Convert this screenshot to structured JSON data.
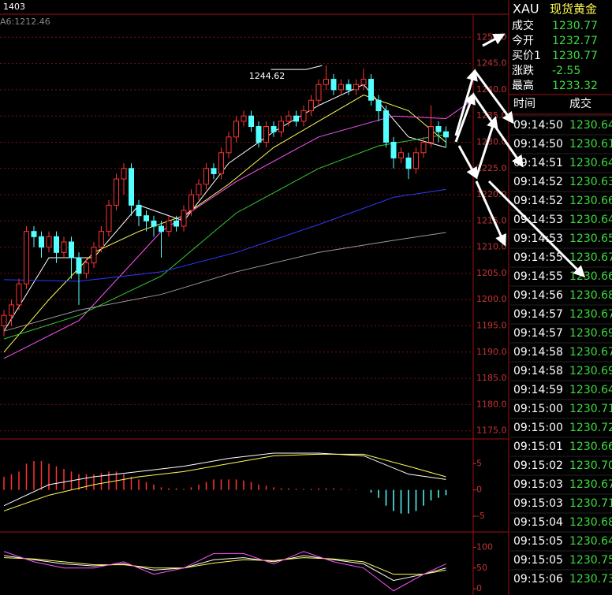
{
  "header": {
    "code": "1403",
    "ma_label": "A6:1212.46"
  },
  "quote": {
    "symbol": "XAU",
    "name": "现货黄金",
    "rows": [
      [
        "成交",
        "1230.77"
      ],
      [
        "今开",
        "1232.77"
      ],
      [
        "买价1",
        "1230.77"
      ],
      [
        "涨跌",
        "-2.55"
      ],
      [
        "最高",
        "1233.32"
      ]
    ]
  },
  "trades": {
    "columns": [
      "时间",
      "成交"
    ],
    "rows": [
      [
        "09:14:50",
        "1230.64"
      ],
      [
        "09:14:50",
        "1230.61"
      ],
      [
        "09:14:51",
        "1230.64"
      ],
      [
        "09:14:52",
        "1230.63"
      ],
      [
        "09:14:52",
        "1230.66"
      ],
      [
        "09:14:53",
        "1230.64"
      ],
      [
        "09:14:53",
        "1230.65"
      ],
      [
        "09:14:55",
        "1230.67"
      ],
      [
        "09:14:55",
        "1230.66"
      ],
      [
        "09:14:56",
        "1230.68"
      ],
      [
        "09:14:57",
        "1230.67"
      ],
      [
        "09:14:57",
        "1230.69"
      ],
      [
        "09:14:58",
        "1230.67"
      ],
      [
        "09:14:58",
        "1230.69"
      ],
      [
        "09:14:59",
        "1230.64"
      ],
      [
        "09:15:00",
        "1230.71"
      ],
      [
        "09:15:00",
        "1230.72"
      ],
      [
        "09:15:01",
        "1230.66"
      ],
      [
        "09:15:02",
        "1230.70"
      ],
      [
        "09:15:03",
        "1230.67"
      ],
      [
        "09:15:03",
        "1230.71"
      ],
      [
        "09:15:04",
        "1230.68"
      ],
      [
        "09:15:05",
        "1230.64"
      ],
      [
        "09:15:05",
        "1230.75"
      ],
      [
        "09:15:06",
        "1230.73"
      ]
    ]
  },
  "chart_data": [
    {
      "type": "candlestick",
      "annotation": "1244.62",
      "grid": true,
      "up_color": "#ff3232",
      "down_color": "#54ffff",
      "ylim": [
        1174.5,
        1251.4
      ],
      "yticks": [
        {
          "value": 1250,
          "label": "1250.0"
        },
        {
          "value": 1245,
          "label": "1245.0"
        },
        {
          "value": 1240,
          "label": "1240.0"
        },
        {
          "value": 1235,
          "label": "1235.0"
        },
        {
          "value": 1230,
          "label": "1230.0"
        },
        {
          "value": 1225,
          "label": "1225.0"
        },
        {
          "value": 1220,
          "label": "1220.0"
        },
        {
          "value": 1215,
          "label": "1215.0"
        },
        {
          "value": 1210,
          "label": "1210.0"
        },
        {
          "value": 1205,
          "label": "1205.0"
        },
        {
          "value": 1200,
          "label": "1200.0"
        },
        {
          "value": 1195,
          "label": "1195.0"
        },
        {
          "value": 1190,
          "label": "1190.0"
        },
        {
          "value": 1185,
          "label": "1185.0"
        },
        {
          "value": 1180,
          "label": "1180.0"
        },
        {
          "value": 1175,
          "label": "1175.0"
        }
      ],
      "open": [
        1195,
        1197,
        1199,
        1203,
        1213,
        1212,
        1210,
        1212,
        1209,
        1211,
        1208,
        1205,
        1207,
        1210,
        1213,
        1218,
        1223,
        1225,
        1218,
        1216,
        1215,
        1214,
        1213,
        1215,
        1214,
        1217,
        1220,
        1222,
        1225,
        1224,
        1228,
        1231,
        1234,
        1235,
        1233,
        1230,
        1233,
        1232,
        1234,
        1235,
        1234,
        1236,
        1238,
        1241,
        1242,
        1240,
        1241,
        1240,
        1241,
        1242,
        1238,
        1236,
        1230,
        1227,
        1227,
        1225,
        1228,
        1230,
        1233,
        1232
      ],
      "high": [
        1198,
        1200,
        1204,
        1214,
        1214,
        1213,
        1213,
        1213,
        1212,
        1212,
        1209,
        1208,
        1211,
        1214,
        1219,
        1224,
        1226,
        1226,
        1219,
        1217,
        1216,
        1215,
        1216,
        1216,
        1218,
        1221,
        1223,
        1226,
        1226,
        1229,
        1232,
        1235,
        1236,
        1236,
        1234,
        1234,
        1234,
        1235,
        1236,
        1236,
        1237,
        1239,
        1242,
        1244.62,
        1243,
        1242,
        1242,
        1242,
        1244,
        1243,
        1239,
        1237,
        1231,
        1229,
        1228,
        1229,
        1231,
        1237,
        1234,
        1233
      ],
      "low": [
        1193,
        1195,
        1198,
        1202,
        1210,
        1208,
        1209,
        1207,
        1208,
        1204,
        1199,
        1204,
        1206,
        1209,
        1212,
        1217,
        1220,
        1216,
        1214,
        1213,
        1212,
        1208,
        1212,
        1213,
        1213,
        1216,
        1219,
        1221,
        1223,
        1223,
        1227,
        1230,
        1233,
        1232,
        1229,
        1229,
        1231,
        1231,
        1233,
        1233,
        1233,
        1235,
        1237,
        1240,
        1239,
        1239,
        1239,
        1239,
        1240,
        1237,
        1234,
        1229,
        1225,
        1226,
        1223,
        1224,
        1227,
        1229,
        1230,
        1229
      ],
      "close": [
        1197,
        1199,
        1203,
        1213,
        1212,
        1210,
        1212,
        1209,
        1211,
        1208,
        1205,
        1207,
        1210,
        1213,
        1218,
        1223,
        1225,
        1218,
        1216,
        1215,
        1214,
        1213,
        1215,
        1214,
        1217,
        1220,
        1222,
        1225,
        1224,
        1228,
        1231,
        1234,
        1235,
        1233,
        1230,
        1233,
        1232,
        1234,
        1235,
        1234,
        1236,
        1238,
        1241,
        1242,
        1240,
        1241,
        1240,
        1241,
        1242,
        1238,
        1236,
        1230,
        1227,
        1228,
        1225,
        1228,
        1230,
        1233,
        1232,
        1231
      ],
      "series": [
        {
          "color": "#ffffff",
          "x": [
            0,
            6,
            12,
            18,
            24,
            30,
            36,
            42,
            48,
            54,
            59
          ],
          "values": [
            1194,
            1208,
            1208,
            1218,
            1215,
            1226,
            1232,
            1237,
            1241,
            1231,
            1229
          ]
        },
        {
          "color": "#ffff54",
          "x": [
            0,
            6,
            12,
            18,
            24,
            30,
            36,
            42,
            48,
            54,
            59
          ],
          "values": [
            1190,
            1200,
            1209,
            1213,
            1216,
            1222,
            1229,
            1234,
            1239,
            1236,
            1230
          ]
        },
        {
          "color": "#ff54ff",
          "x": [
            0,
            10,
            21,
            31,
            42,
            52,
            59,
            62
          ],
          "values": [
            1188.8,
            1196,
            1213,
            1222.5,
            1231,
            1235,
            1234.5,
            1237.5
          ]
        },
        {
          "color": "#33cc33",
          "x": [
            0,
            10,
            21,
            31,
            42,
            50,
            59
          ],
          "values": [
            1192.5,
            1197,
            1204.5,
            1216.5,
            1225,
            1229.3,
            1231.5
          ]
        },
        {
          "color": "#2a3cff",
          "x": [
            0,
            10,
            21,
            31,
            42,
            52,
            59
          ],
          "values": [
            1203.8,
            1203.5,
            1205.3,
            1209,
            1214.3,
            1219.5,
            1221
          ]
        },
        {
          "color": "#999999",
          "x": [
            0,
            10,
            21,
            31,
            42,
            52,
            59
          ],
          "values": [
            1194,
            1198,
            1201,
            1205.3,
            1209,
            1211.3,
            1212.8
          ]
        }
      ]
    },
    {
      "type": "bar",
      "ylim": [
        -6.5,
        8.5
      ],
      "yticks": [
        5,
        0,
        -5
      ],
      "up_color": "#ff3232",
      "down_color": "#54ffff",
      "values": [
        2.5,
        3,
        3.5,
        5,
        5.5,
        5.5,
        5,
        4.5,
        4,
        3.5,
        3,
        3,
        3,
        3.2,
        3.5,
        3.5,
        3,
        2.5,
        2,
        1.5,
        1,
        0.5,
        0.3,
        0.3,
        0.2,
        0.5,
        1,
        1.5,
        2,
        2,
        2,
        2,
        1.8,
        1.5,
        1,
        0.8,
        0.5,
        0.3,
        0.3,
        0.2,
        0.2,
        0.2,
        0.3,
        0.3,
        0.3,
        0.2,
        0.1,
        0.1,
        0,
        -0.5,
        -1.5,
        -3,
        -4,
        -4.5,
        -4.5,
        -4,
        -3,
        -2,
        -1.5,
        -1
      ],
      "series": [
        {
          "color": "#ffffff",
          "x": [
            0,
            6,
            12,
            18,
            24,
            30,
            36,
            42,
            48,
            54,
            59
          ],
          "values": [
            -3,
            1,
            2.5,
            3.5,
            4.5,
            6,
            7,
            7,
            6.5,
            3,
            2
          ]
        },
        {
          "color": "#ffff54",
          "x": [
            0,
            6,
            12,
            18,
            24,
            30,
            36,
            42,
            48,
            54,
            59
          ],
          "values": [
            -4,
            -1,
            1,
            2.5,
            3.5,
            5,
            6.5,
            6.8,
            6.8,
            4.5,
            2.5
          ]
        }
      ]
    },
    {
      "type": "line",
      "ylim": [
        -15,
        118
      ],
      "yticks": [
        100,
        50,
        0
      ],
      "series": [
        {
          "color": "#ffffff",
          "x": [
            0,
            4,
            8,
            12,
            16,
            20,
            24,
            28,
            32,
            36,
            40,
            44,
            48,
            52,
            56,
            59
          ],
          "values": [
            80,
            70,
            60,
            55,
            60,
            45,
            50,
            70,
            75,
            65,
            80,
            70,
            60,
            20,
            35,
            50
          ]
        },
        {
          "color": "#ffff54",
          "x": [
            0,
            4,
            8,
            12,
            16,
            20,
            24,
            28,
            32,
            36,
            40,
            44,
            48,
            52,
            56,
            59
          ],
          "values": [
            75,
            72,
            65,
            58,
            58,
            50,
            50,
            62,
            70,
            68,
            75,
            72,
            65,
            35,
            35,
            45
          ]
        },
        {
          "color": "#ff54ff",
          "x": [
            0,
            4,
            8,
            12,
            16,
            20,
            24,
            28,
            32,
            36,
            40,
            44,
            48,
            52,
            56,
            59
          ],
          "values": [
            90,
            65,
            50,
            50,
            65,
            35,
            50,
            85,
            85,
            60,
            90,
            65,
            50,
            -5,
            35,
            60
          ]
        }
      ]
    }
  ]
}
